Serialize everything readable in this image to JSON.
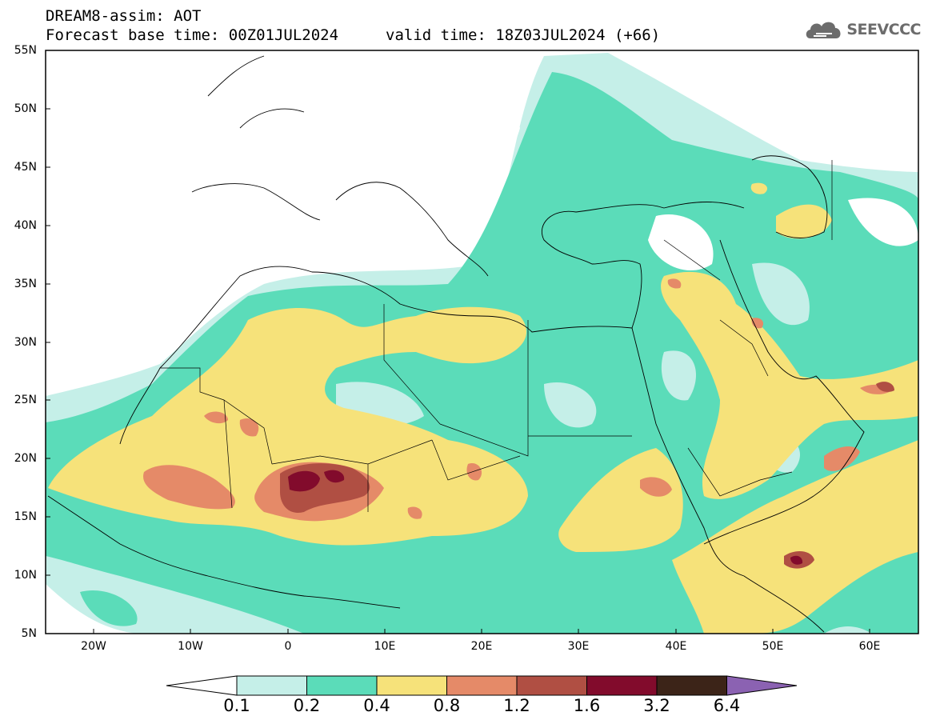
{
  "header": {
    "title": "DREAM8-assim: AOT",
    "base_time": "Forecast base time: 00Z01JUL2024",
    "valid_time": "valid time: 18Z03JUL2024 (+66)",
    "logo_text": "SEEVCCC"
  },
  "map": {
    "lon_range": [
      -25,
      65
    ],
    "lat_range": [
      5,
      55
    ],
    "lat_labels": [
      "55N",
      "50N",
      "45N",
      "40N",
      "35N",
      "30N",
      "25N",
      "20N",
      "15N",
      "10N",
      "5N"
    ],
    "lon_labels": [
      "20W",
      "10W",
      "0",
      "10E",
      "20E",
      "30E",
      "40E",
      "50E",
      "60E"
    ]
  },
  "colorbar": {
    "labels": [
      "0.1",
      "0.2",
      "0.4",
      "0.8",
      "1.2",
      "1.6",
      "3.2",
      "6.4"
    ],
    "colors": [
      "#c5efe8",
      "#5bdcb9",
      "#f6e27a",
      "#e58a68",
      "#b04f43",
      "#820b2c",
      "#3c2418",
      "#8b62b2"
    ]
  }
}
